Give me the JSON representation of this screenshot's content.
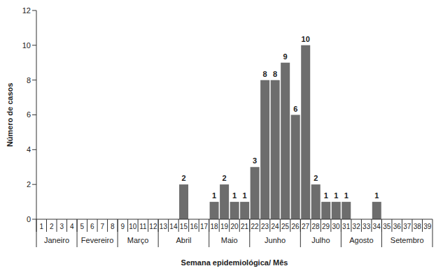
{
  "chart_data": {
    "type": "bar",
    "y_label": "Número de casos",
    "x_label": "Semana epidemiológica/ Mês",
    "categories": [
      "1",
      "2",
      "3",
      "4",
      "5",
      "6",
      "7",
      "8",
      "9",
      "10",
      "11",
      "12",
      "13",
      "14",
      "15",
      "16",
      "17",
      "18",
      "19",
      "20",
      "21",
      "22",
      "23",
      "24",
      "25",
      "26",
      "27",
      "28",
      "29",
      "30",
      "31",
      "32",
      "33",
      "34",
      "35",
      "36",
      "37",
      "38",
      "39"
    ],
    "values": [
      null,
      null,
      null,
      null,
      null,
      null,
      null,
      null,
      null,
      null,
      null,
      null,
      null,
      null,
      2,
      null,
      null,
      1,
      2,
      1,
      1,
      3,
      8,
      8,
      9,
      6,
      10,
      2,
      1,
      1,
      1,
      null,
      null,
      1,
      null,
      null,
      null,
      null,
      null
    ],
    "x_groups": [
      {
        "label": "Janeiro",
        "start": 1,
        "end": 4
      },
      {
        "label": "Fevereiro",
        "start": 5,
        "end": 8
      },
      {
        "label": "Março",
        "start": 9,
        "end": 12
      },
      {
        "label": "Abril",
        "start": 13,
        "end": 17
      },
      {
        "label": "Maio",
        "start": 18,
        "end": 21
      },
      {
        "label": "Junho",
        "start": 22,
        "end": 26
      },
      {
        "label": "Julho",
        "start": 27,
        "end": 30
      },
      {
        "label": "Agosto",
        "start": 31,
        "end": 34
      },
      {
        "label": "Setembro",
        "start": 35,
        "end": 39
      }
    ],
    "color": "#6d6d6d",
    "ylim": [
      0,
      12
    ],
    "yticks": [
      0,
      2,
      4,
      6,
      8,
      10,
      12
    ],
    "grid": false,
    "data_labels": true
  }
}
